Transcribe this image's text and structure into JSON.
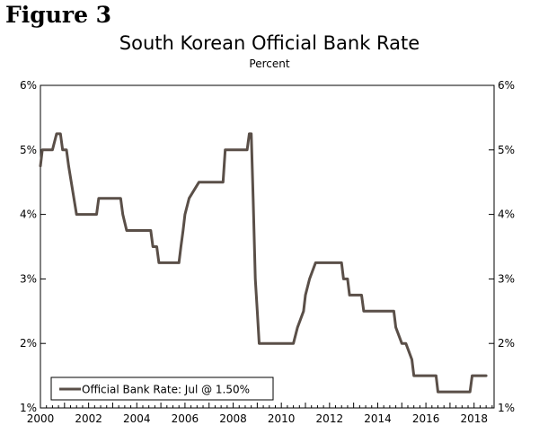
{
  "figure_label": "Figure 3",
  "chart_data": {
    "type": "line",
    "title": "South Korean Official Bank Rate",
    "subtitle": "Percent",
    "xlabel": "",
    "ylabel": "",
    "xlim": [
      2000.0,
      2018.83
    ],
    "ylim": [
      1,
      6
    ],
    "grid": false,
    "legend_position": "bottom-left",
    "y_ticks": [
      1,
      2,
      3,
      4,
      5,
      6
    ],
    "y_tick_labels_left": [
      "1%",
      "2%",
      "3%",
      "4%",
      "5%",
      "6%"
    ],
    "y_tick_labels_right": [
      "1%",
      "2%",
      "3%",
      "4%",
      "5%",
      "6%"
    ],
    "x_ticks": [
      2000,
      2002,
      2004,
      2006,
      2008,
      2010,
      2012,
      2014,
      2016,
      2018
    ],
    "x_tick_labels": [
      "2000",
      "2002",
      "2004",
      "2006",
      "2008",
      "2010",
      "2012",
      "2014",
      "2016",
      "2018"
    ],
    "series": [
      {
        "name": "Official Bank Rate: Jul @ 1.50%",
        "color": "#5a4f48",
        "x": [
          2000.0,
          2000.08,
          2000.17,
          2000.33,
          2000.5,
          2000.67,
          2000.75,
          2000.83,
          2000.92,
          2001.0,
          2001.08,
          2001.17,
          2001.5,
          2001.58,
          2001.67,
          2001.75,
          2002.33,
          2002.42,
          2003.33,
          2003.42,
          2003.58,
          2004.58,
          2004.67,
          2004.83,
          2004.92,
          2005.75,
          2005.83,
          2005.92,
          2006.0,
          2006.17,
          2006.58,
          2007.58,
          2007.67,
          2008.58,
          2008.67,
          2008.75,
          2008.83,
          2008.92,
          2009.0,
          2009.08,
          2009.17,
          2010.5,
          2010.67,
          2010.92,
          2011.0,
          2011.17,
          2011.42,
          2011.5,
          2012.5,
          2012.58,
          2012.75,
          2012.83,
          2013.33,
          2013.42,
          2014.67,
          2014.75,
          2015.0,
          2015.17,
          2015.42,
          2015.5,
          2016.42,
          2016.5,
          2017.83,
          2017.92,
          2018.5
        ],
        "values": [
          4.75,
          5.0,
          5.0,
          5.0,
          5.0,
          5.25,
          5.25,
          5.25,
          5.0,
          5.0,
          5.0,
          4.75,
          4.0,
          4.0,
          4.0,
          4.0,
          4.0,
          4.25,
          4.25,
          4.0,
          3.75,
          3.75,
          3.5,
          3.5,
          3.25,
          3.25,
          3.5,
          3.75,
          4.0,
          4.25,
          4.5,
          4.5,
          5.0,
          5.0,
          5.25,
          5.25,
          4.25,
          3.0,
          2.5,
          2.0,
          2.0,
          2.0,
          2.25,
          2.5,
          2.75,
          3.0,
          3.25,
          3.25,
          3.25,
          3.0,
          3.0,
          2.75,
          2.75,
          2.5,
          2.5,
          2.25,
          2.0,
          2.0,
          1.75,
          1.5,
          1.5,
          1.25,
          1.25,
          1.5,
          1.5
        ]
      }
    ]
  }
}
